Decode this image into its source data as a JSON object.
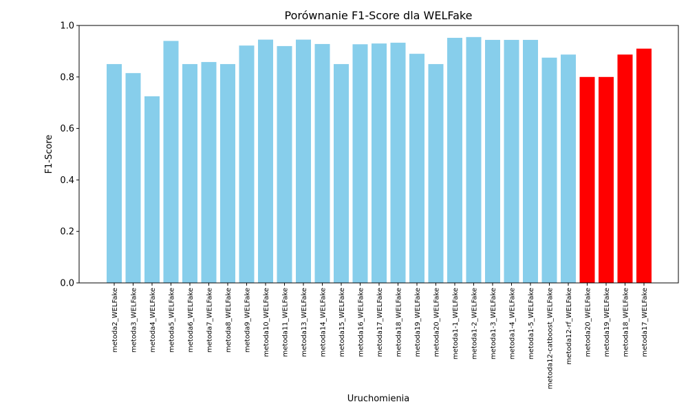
{
  "chart_data": {
    "type": "bar",
    "title": "Porównanie F1-Score dla WELFake",
    "xlabel": "Uruchomienia",
    "ylabel": "F1-Score",
    "ylim": [
      0,
      1.0
    ],
    "yticks": [
      "0.0",
      "0.2",
      "0.4",
      "0.6",
      "0.8",
      "1.0"
    ],
    "grid": false,
    "colors": {
      "default": "#87ceeb",
      "highlight": "#ff0000"
    },
    "categories": [
      "metoda2_WELFake",
      "metoda3_WELFake",
      "metoda4_WELFake",
      "metoda5_WELFake",
      "metoda6_WELFake",
      "metoda7_WELFake",
      "metoda8_WELFake",
      "metoda9_WELFake",
      "metoda10_WELFake",
      "metoda11_WELFake",
      "metoda13_WELFake",
      "metoda14_WELFake",
      "metoda15_WELFake",
      "metoda16_WELFake",
      "metoda17_WELFake",
      "metoda18_WELFake",
      "metoda19_WELFake",
      "metoda20_WELFake",
      "metoda1-1_WELFake",
      "metoda1-2_WELFake",
      "metoda1-3_WELFake",
      "metoda1-4_WELFake",
      "metoda1-5_WELFake",
      "metoda12-catboost_WELFake",
      "metoda12-rf_WELFake",
      "metoda20_WELFake",
      "metoda19_WELFake",
      "metoda18_WELFake",
      "metoda17_WELFake"
    ],
    "values": [
      0.85,
      0.815,
      0.725,
      0.94,
      0.85,
      0.858,
      0.85,
      0.922,
      0.945,
      0.92,
      0.945,
      0.928,
      0.85,
      0.927,
      0.93,
      0.933,
      0.89,
      0.85,
      0.952,
      0.955,
      0.944,
      0.944,
      0.944,
      0.875,
      0.887,
      0.8,
      0.8,
      0.887,
      0.91
    ],
    "bar_colors": [
      "default",
      "default",
      "default",
      "default",
      "default",
      "default",
      "default",
      "default",
      "default",
      "default",
      "default",
      "default",
      "default",
      "default",
      "default",
      "default",
      "default",
      "default",
      "default",
      "default",
      "default",
      "default",
      "default",
      "default",
      "default",
      "highlight",
      "highlight",
      "highlight",
      "highlight"
    ]
  }
}
